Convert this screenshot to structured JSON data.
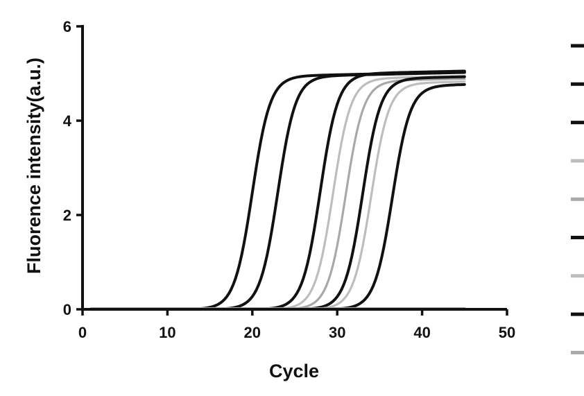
{
  "chart_data": {
    "type": "line",
    "xlabel": "Cycle",
    "ylabel": "Fluorence intensity(a.u.)",
    "xlim": [
      0,
      50
    ],
    "ylim": [
      0,
      6
    ],
    "xticks": [
      0,
      10,
      20,
      30,
      40,
      50
    ],
    "yticks": [
      0,
      2,
      4,
      6
    ],
    "grid": false,
    "legend_position": "right",
    "x_range": [
      1,
      45
    ],
    "series": [
      {
        "color": "#111111",
        "midpoint_cycle": 20.0,
        "plateau": 4.95
      },
      {
        "color": "#111111",
        "midpoint_cycle": 23.0,
        "plateau": 4.95
      },
      {
        "color": "#111111",
        "midpoint_cycle": 28.0,
        "plateau": 5.0
      },
      {
        "color": "#bdbdbd",
        "midpoint_cycle": 29.5,
        "plateau": 4.9
      },
      {
        "color": "#a8a8a8",
        "midpoint_cycle": 31.0,
        "plateau": 4.85
      },
      {
        "color": "#111111",
        "midpoint_cycle": 33.0,
        "plateau": 4.9
      },
      {
        "color": "#bdbdbd",
        "midpoint_cycle": 34.0,
        "plateau": 4.8
      },
      {
        "color": "#111111",
        "midpoint_cycle": 36.5,
        "plateau": 4.75
      },
      {
        "color": "#a8a8a8",
        "midpoint_cycle": null,
        "plateau": 0.02
      }
    ]
  }
}
